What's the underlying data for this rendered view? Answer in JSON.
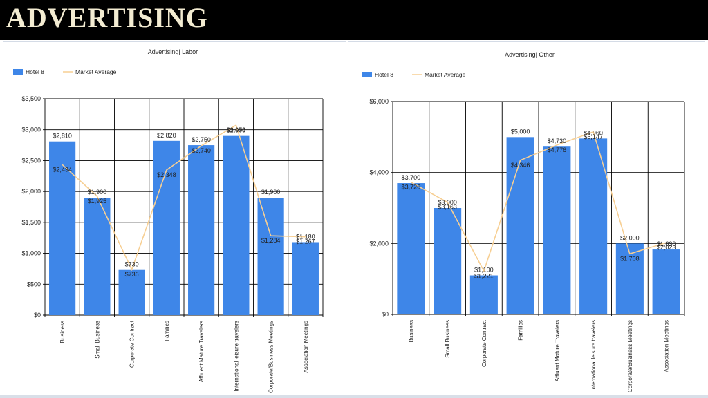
{
  "header": {
    "title": "ADVERTISING"
  },
  "colors": {
    "bar": "#3e86e8",
    "line": "#f7cf93",
    "grid": "#000000",
    "header_bg": "#000000",
    "header_text": "#f3ecd2"
  },
  "chart_data": [
    {
      "type": "bar",
      "title": "Advertising| Labor",
      "legend": [
        "Hotel 8",
        "Market Average"
      ],
      "legend_position": "top-left",
      "categories": [
        "Business",
        "Small Business",
        "Corporate Contract",
        "Families",
        "Affluent Mature Travelers",
        "International leisure travelers",
        "Corporate/Business Meetings",
        "Association Meetings"
      ],
      "series": [
        {
          "name": "Hotel 8",
          "type": "bar",
          "values": [
            2810,
            1900,
            730,
            2820,
            2750,
            2900,
            1900,
            1180
          ]
        },
        {
          "name": "Market Average",
          "type": "line",
          "values": [
            2434,
            1925,
            736,
            2348,
            2740,
            3073,
            1284,
            1267
          ]
        }
      ],
      "bar_labels": [
        "$2,810",
        "$1,900",
        "$730",
        "$2,820",
        "$2,750",
        "$2,900",
        "$1,900",
        "$1,180"
      ],
      "line_labels": [
        "$2,434",
        "$1,925",
        "$736",
        "$2,348",
        "$2,740",
        "$3,073",
        "$1,284",
        "$1,267"
      ],
      "ylim": [
        0,
        3500
      ],
      "yticks": [
        "$0",
        "$500",
        "$1,000",
        "$1,500",
        "$2,000",
        "$2,500",
        "$3,000",
        "$3,500"
      ],
      "grid": true
    },
    {
      "type": "bar",
      "title": "Advertising| Other",
      "legend": [
        "Hotel 8",
        "Market Average"
      ],
      "legend_position": "top-left",
      "categories": [
        "Business",
        "Small Business",
        "Corporate Contract",
        "Families",
        "Affluent Mature Travelers",
        "International leisure travelers",
        "Corporate/Business Meetings",
        "Association Meetings"
      ],
      "series": [
        {
          "name": "Hotel 8",
          "type": "bar",
          "values": [
            3700,
            3000,
            1100,
            5000,
            4730,
            4960,
            2000,
            1830
          ]
        },
        {
          "name": "Market Average",
          "type": "line",
          "values": [
            3726,
            3163,
            1221,
            4346,
            4776,
            5147,
            1708,
            2023
          ]
        }
      ],
      "bar_labels": [
        "$3,700",
        "$3,000",
        "$1,100",
        "$5,000",
        "$4,730",
        "$4,960",
        "$2,000",
        "$1,830"
      ],
      "line_labels": [
        "$3,726",
        "$3,163",
        "$1,221",
        "$4,346",
        "$4,776",
        "$5,147",
        "$1,708",
        "$2,023"
      ],
      "ylim": [
        0,
        6000
      ],
      "yticks": [
        "$0",
        "$2,000",
        "$4,000",
        "$6,000"
      ],
      "grid": true
    }
  ]
}
